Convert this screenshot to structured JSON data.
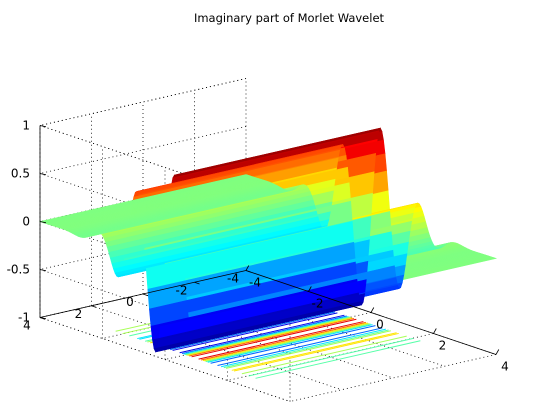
{
  "chart_data": {
    "type": "surface",
    "title": "Imaginary part of Morlet Wavelet",
    "xlabel": "",
    "ylabel": "",
    "zlabel": "",
    "function": "imag(morlet wavelet): sin(5*x) * exp(-x^2/2), extruded along y",
    "xlim": [
      -4,
      4
    ],
    "ylim": [
      -4,
      4
    ],
    "zlim": [
      -1,
      1
    ],
    "x_ticks": [
      "-4",
      "-2",
      "0",
      "2",
      "4"
    ],
    "y_ticks": [
      "-4",
      "-2",
      "0",
      "2",
      "4"
    ],
    "z_ticks": [
      "-1",
      "-0.5",
      "0",
      "0.5",
      "1"
    ],
    "grid": true,
    "box": "dotted",
    "colormap": "jet",
    "contour_projection": "bottom (z = -1)",
    "colormap_colors": [
      "#00008F",
      "#0000FF",
      "#00FFFF",
      "#FFFF00",
      "#FF0000",
      "#800000"
    ]
  }
}
